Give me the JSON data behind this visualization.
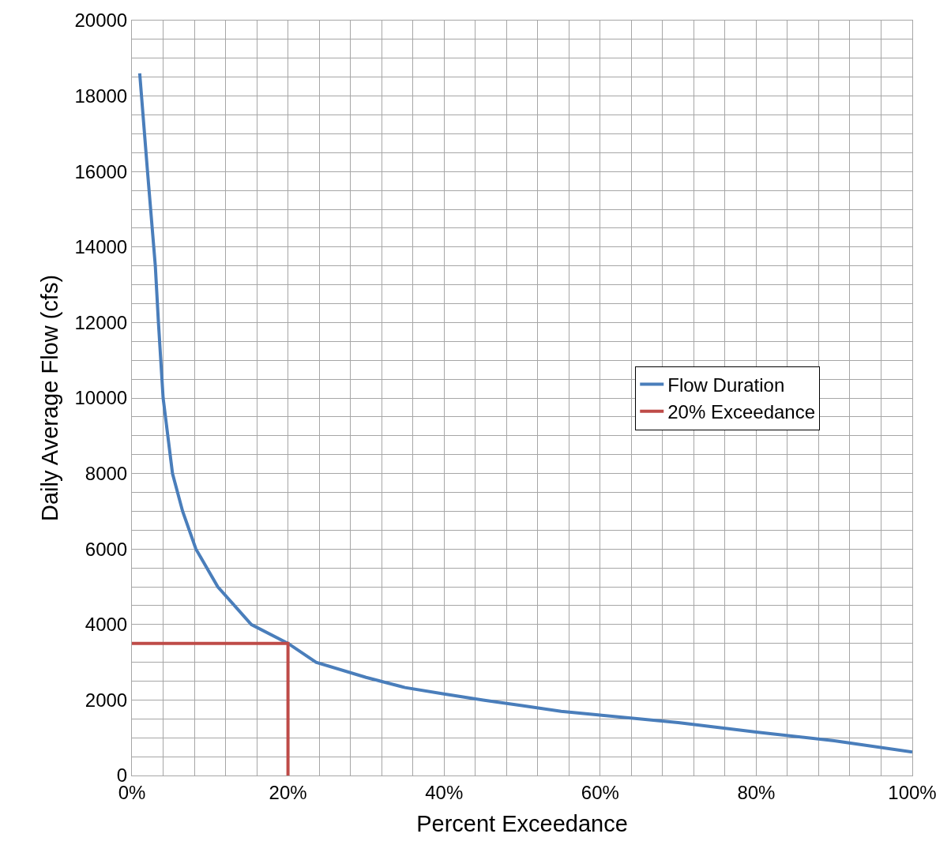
{
  "chart_data": {
    "type": "line",
    "xlabel": "Percent Exceedance",
    "ylabel": "Daily Average Flow (cfs)",
    "series": [
      {
        "name": "Flow Duration",
        "color": "#4a7ebb",
        "x": [
          1,
          2,
          3,
          3.4,
          4,
          5.2,
          6.5,
          8.2,
          11,
          15.3,
          20,
          23.6,
          30,
          35,
          40,
          45,
          50,
          55,
          60,
          70,
          80,
          90,
          100
        ],
        "values": [
          18600,
          16000,
          13500,
          12000,
          10000,
          8000,
          7000,
          6000,
          5000,
          4000,
          3500,
          3000,
          2600,
          2330,
          2160,
          2000,
          1850,
          1700,
          1600,
          1400,
          1150,
          920,
          620
        ]
      },
      {
        "name": "20% Exceedance",
        "color": "#be4b48",
        "x": [
          0,
          20,
          20
        ],
        "values": [
          3500,
          3500,
          0
        ]
      }
    ],
    "xlim": [
      0,
      100
    ],
    "xticks": [
      {
        "value": 0,
        "label": "0%"
      },
      {
        "value": 4,
        "label": null
      },
      {
        "value": 8,
        "label": null
      },
      {
        "value": 12,
        "label": null
      },
      {
        "value": 16,
        "label": null
      },
      {
        "value": 20,
        "label": "20%"
      },
      {
        "value": 24,
        "label": null
      },
      {
        "value": 28,
        "label": null
      },
      {
        "value": 32,
        "label": null
      },
      {
        "value": 36,
        "label": null
      },
      {
        "value": 40,
        "label": "40%"
      },
      {
        "value": 44,
        "label": null
      },
      {
        "value": 48,
        "label": null
      },
      {
        "value": 52,
        "label": null
      },
      {
        "value": 56,
        "label": null
      },
      {
        "value": 60,
        "label": "60%"
      },
      {
        "value": 64,
        "label": null
      },
      {
        "value": 68,
        "label": null
      },
      {
        "value": 72,
        "label": null
      },
      {
        "value": 76,
        "label": null
      },
      {
        "value": 80,
        "label": "80%"
      },
      {
        "value": 84,
        "label": null
      },
      {
        "value": 88,
        "label": null
      },
      {
        "value": 92,
        "label": null
      },
      {
        "value": 96,
        "label": null
      },
      {
        "value": 100,
        "label": "100%"
      }
    ],
    "ylim": [
      0,
      20000
    ],
    "yticks": [
      0,
      {
        "value": 500,
        "label": null
      },
      {
        "value": 1000,
        "label": null
      },
      {
        "value": 1500,
        "label": null
      },
      2000,
      {
        "value": 2500,
        "label": null
      },
      {
        "value": 3000,
        "label": null
      },
      {
        "value": 3500,
        "label": null
      },
      4000,
      {
        "value": 4500,
        "label": null
      },
      {
        "value": 5000,
        "label": null
      },
      {
        "value": 5500,
        "label": null
      },
      6000,
      {
        "value": 6500,
        "label": null
      },
      {
        "value": 7000,
        "label": null
      },
      {
        "value": 7500,
        "label": null
      },
      8000,
      {
        "value": 8500,
        "label": null
      },
      {
        "value": 9000,
        "label": null
      },
      {
        "value": 9500,
        "label": null
      },
      10000,
      {
        "value": 10500,
        "label": null
      },
      {
        "value": 11000,
        "label": null
      },
      {
        "value": 11500,
        "label": null
      },
      12000,
      {
        "value": 12500,
        "label": null
      },
      {
        "value": 13000,
        "label": null
      },
      {
        "value": 13500,
        "label": null
      },
      14000,
      {
        "value": 14500,
        "label": null
      },
      {
        "value": 15000,
        "label": null
      },
      {
        "value": 15500,
        "label": null
      },
      16000,
      {
        "value": 16500,
        "label": null
      },
      {
        "value": 17000,
        "label": null
      },
      {
        "value": 17500,
        "label": null
      },
      18000,
      {
        "value": 18500,
        "label": null
      },
      {
        "value": 19000,
        "label": null
      },
      {
        "value": 19500,
        "label": null
      },
      20000
    ],
    "grid": true,
    "legend": "right",
    "marker": "none",
    "line_style": "solid"
  }
}
